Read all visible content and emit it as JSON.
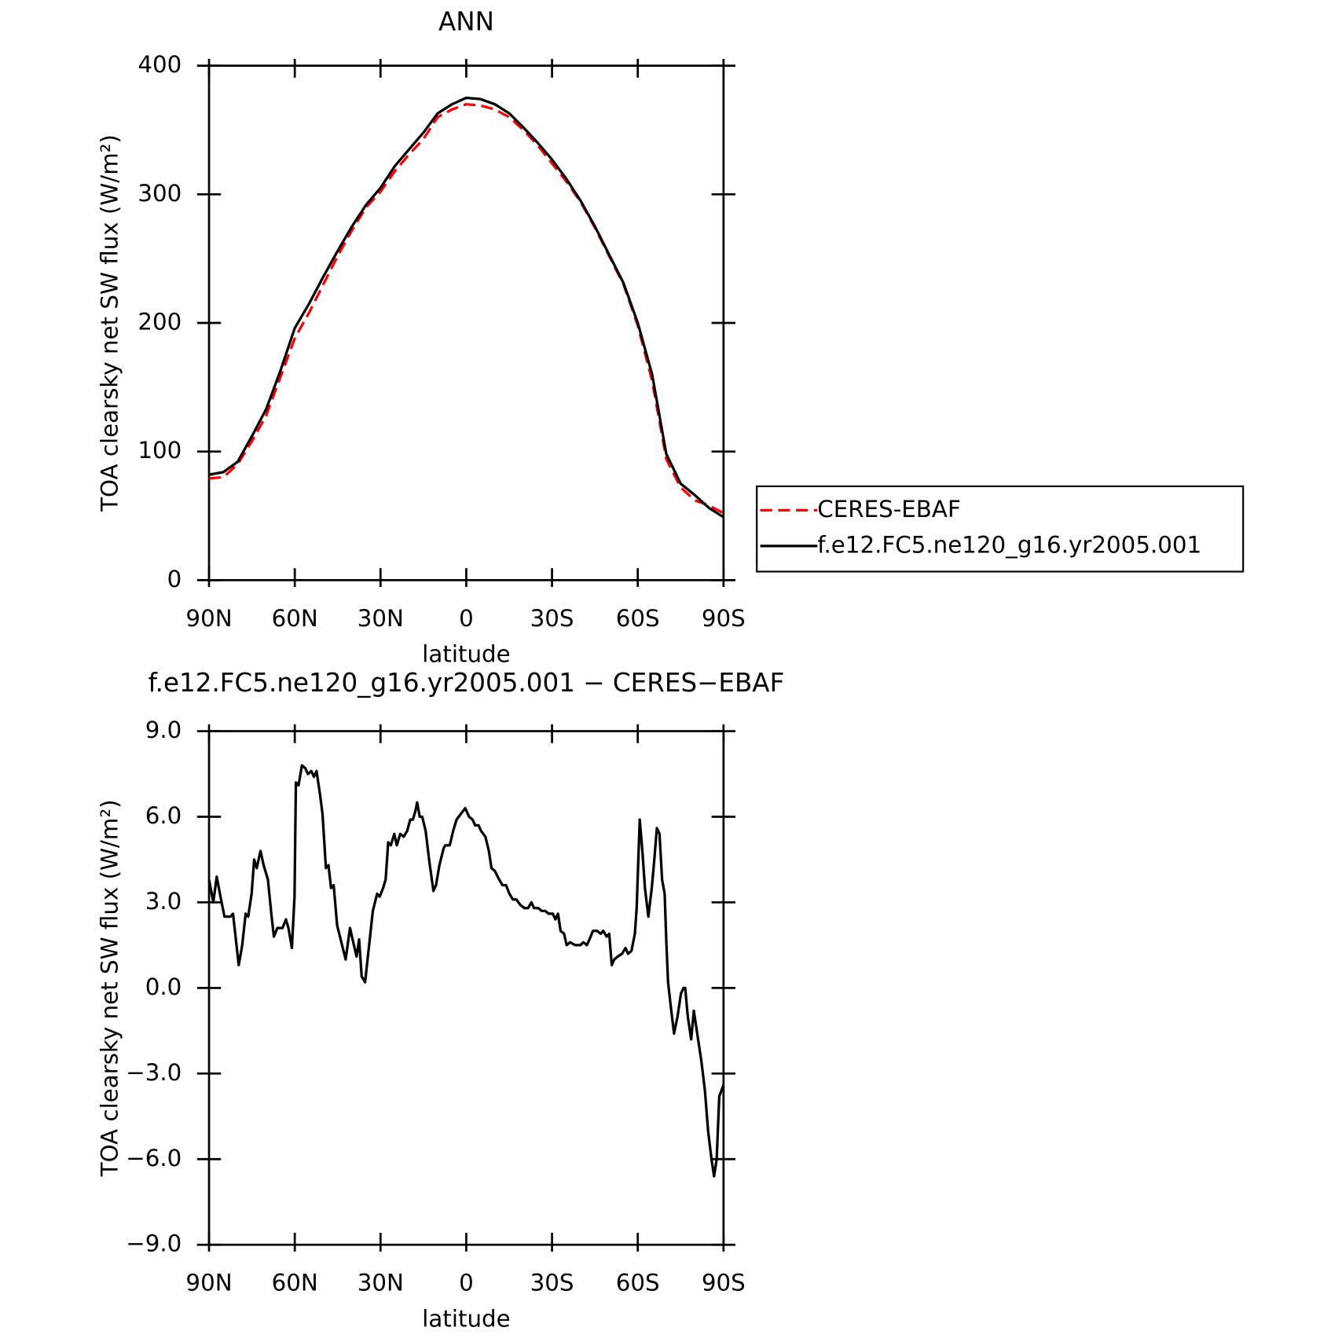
{
  "chart_data": [
    {
      "type": "line",
      "title": "ANN",
      "xlabel": "latitude",
      "ylabel": "TOA clearsky net SW flux (W/m²)",
      "x": [
        90,
        85,
        80,
        75,
        70,
        65,
        60,
        55,
        50,
        45,
        40,
        35,
        30,
        25,
        20,
        15,
        10,
        5,
        0,
        -5,
        -10,
        -15,
        -20,
        -25,
        -30,
        -35,
        -40,
        -45,
        -50,
        -55,
        -60,
        -65,
        -70,
        -75,
        -80,
        -85,
        -90
      ],
      "series": [
        {
          "name": "CERES-EBAF",
          "color": "#ff0000",
          "linestyle": "dashed",
          "values": [
            79,
            80,
            90,
            108,
            128,
            158,
            188,
            208,
            230,
            252,
            272,
            290,
            302,
            318,
            331,
            343,
            360,
            366,
            370,
            369,
            366,
            360,
            350,
            338,
            324,
            310,
            294,
            274,
            252,
            230,
            198,
            155,
            94,
            72,
            62,
            58,
            52
          ]
        },
        {
          "name": "f.e12.FC5.ne120_g16.yr2005.001",
          "color": "#000000",
          "linestyle": "solid",
          "values": [
            82,
            84,
            92,
            112,
            133,
            163,
            196,
            215,
            236,
            256,
            275,
            292,
            305,
            322,
            335,
            348,
            363,
            370,
            375,
            374,
            370,
            363,
            352,
            340,
            327,
            312,
            295,
            275,
            253,
            231,
            200,
            160,
            98,
            75,
            66,
            56,
            49
          ]
        }
      ],
      "xlim": [
        90,
        -90
      ],
      "xticks": [
        {
          "value": 90,
          "label": "90N"
        },
        {
          "value": 60,
          "label": "60N"
        },
        {
          "value": 30,
          "label": "30N"
        },
        0,
        {
          "value": -30,
          "label": "30S"
        },
        {
          "value": -60,
          "label": "60S"
        },
        {
          "value": -90,
          "label": "90S"
        }
      ],
      "ylim": [
        0,
        400
      ],
      "yticks": [
        0,
        100,
        200,
        300,
        400
      ],
      "legend": "right"
    },
    {
      "type": "line",
      "title": "f.e12.FC5.ne120_g16.yr2005.001 − CERES−EBAF",
      "xlabel": "latitude",
      "ylabel": "TOA clearsky net SW flux (W/m²)",
      "x": [
        90,
        88.5,
        87.3,
        86,
        84.6,
        82.5,
        81.6,
        80.4,
        79.6,
        78.4,
        77.2,
        76.3,
        75.1,
        74.2,
        73.3,
        72,
        70.9,
        69.4,
        68.2,
        67.3,
        66.1,
        64.3,
        63.1,
        62.2,
        61,
        60.1,
        59.6,
        58.7,
        57.5,
        56.3,
        55.4,
        54.2,
        53.3,
        52.4,
        51.2,
        50.3,
        49.1,
        48.2,
        47.3,
        46.4,
        45.2,
        43.7,
        42.2,
        40.7,
        39.3,
        38.4,
        37.5,
        36.6,
        35.4,
        34.2,
        32.7,
        31.2,
        30.3,
        29.1,
        28.2,
        27.3,
        26.4,
        25.2,
        24.3,
        23.1,
        21.9,
        20.7,
        19.6,
        18.7,
        17.8,
        17.2,
        16.3,
        15.4,
        14.2,
        13,
        11.5,
        10.6,
        9.4,
        7.9,
        7.3,
        5.8,
        4.6,
        3.4,
        1.9,
        0.4,
        -1,
        -2.2,
        -3.1,
        -4.3,
        -5.2,
        -6.7,
        -7.9,
        -8.8,
        -10,
        -11.5,
        -12.7,
        -13.9,
        -15.1,
        -16.3,
        -17.5,
        -19,
        -20.4,
        -21.6,
        -22.8,
        -23.7,
        -25.2,
        -26.4,
        -27.6,
        -28.8,
        -30.3,
        -31.2,
        -32.1,
        -33,
        -34.2,
        -35.1,
        -36.3,
        -38.1,
        -39.9,
        -41,
        -42.2,
        -43.1,
        -44.3,
        -45.8,
        -47,
        -47.9,
        -49.1,
        -50,
        -50.9,
        -51.8,
        -53,
        -54.5,
        -55.7,
        -56.6,
        -57.8,
        -59,
        -59.6,
        -60.1,
        -60.7,
        -61.6,
        -62.5,
        -63.7,
        -64.9,
        -65.8,
        -66.7,
        -67.6,
        -68.5,
        -69.4,
        -70,
        -70.6,
        -71.5,
        -72.7,
        -73.9,
        -75.1,
        -76,
        -76.6,
        -77.5,
        -78.7,
        -79.6,
        -81.1,
        -82.3,
        -83.5,
        -84.6,
        -85.8,
        -86.7,
        -87.6,
        -88.5,
        -90
      ],
      "series": [
        {
          "color": "#000000",
          "values": [
            3.8,
            3.0,
            3.9,
            3.2,
            2.5,
            2.5,
            2.6,
            1.5,
            0.8,
            1.5,
            2.6,
            2.5,
            3.3,
            4.5,
            4.2,
            4.8,
            4.3,
            3.8,
            2.6,
            1.8,
            2.1,
            2.1,
            2.4,
            2.1,
            1.4,
            3.2,
            7.2,
            7.1,
            7.8,
            7.7,
            7.5,
            7.6,
            7.4,
            7.6,
            6.8,
            6.1,
            4.2,
            4.3,
            3.5,
            3.6,
            2.2,
            1.6,
            1.0,
            2.1,
            1.5,
            1.1,
            1.7,
            0.4,
            0.2,
            1.3,
            2.7,
            3.3,
            3.2,
            3.5,
            3.8,
            5.1,
            5.0,
            5.4,
            5.0,
            5.4,
            5.3,
            5.5,
            5.9,
            5.9,
            6.2,
            6.5,
            6.0,
            6.0,
            5.5,
            4.5,
            3.4,
            3.6,
            4.3,
            4.9,
            5.0,
            5.0,
            5.5,
            5.9,
            6.1,
            6.3,
            6.0,
            5.9,
            5.7,
            5.7,
            5.5,
            5.3,
            4.8,
            4.2,
            4.1,
            3.8,
            3.6,
            3.6,
            3.3,
            3.1,
            3.1,
            2.9,
            2.8,
            2.8,
            3.0,
            2.8,
            2.8,
            2.7,
            2.7,
            2.6,
            2.6,
            2.4,
            2.6,
            2.0,
            1.9,
            1.5,
            1.6,
            1.5,
            1.5,
            1.6,
            1.5,
            1.7,
            2.0,
            2.0,
            1.9,
            2.0,
            1.8,
            1.9,
            0.8,
            1.0,
            1.1,
            1.2,
            1.4,
            1.2,
            1.3,
            1.9,
            2.8,
            4.2,
            5.9,
            4.8,
            3.5,
            2.5,
            3.5,
            4.5,
            5.6,
            5.4,
            3.8,
            3.3,
            1.6,
            0.2,
            -0.6,
            -1.6,
            -1.0,
            -0.2,
            0.0,
            0.0,
            -1.0,
            -1.8,
            -0.8,
            -1.8,
            -2.6,
            -3.6,
            -5.0,
            -6.0,
            -6.6,
            -6.0,
            -3.8,
            -3.4
          ]
        }
      ],
      "xlim": [
        90,
        -90
      ],
      "xticks": [
        {
          "value": 90,
          "label": "90N"
        },
        {
          "value": 60,
          "label": "60N"
        },
        {
          "value": 30,
          "label": "30N"
        },
        0,
        {
          "value": -30,
          "label": "30S"
        },
        {
          "value": -60,
          "label": "60S"
        },
        {
          "value": -90,
          "label": "90S"
        }
      ],
      "ylim": [
        -9,
        9
      ],
      "yticks": [
        {
          "value": -9,
          "label": "−9.0"
        },
        {
          "value": -6,
          "label": "−6.0"
        },
        {
          "value": -3,
          "label": "−3.0"
        },
        {
          "value": 0,
          "label": "0.0"
        },
        {
          "value": 3,
          "label": "3.0"
        },
        {
          "value": 6,
          "label": "6.0"
        },
        {
          "value": 9,
          "label": "9.0"
        }
      ]
    }
  ]
}
